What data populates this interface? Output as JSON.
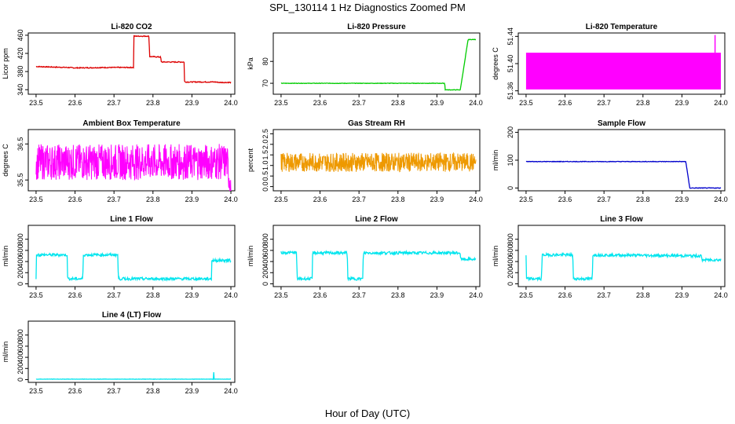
{
  "figure": {
    "title": "SPL_130114  1 Hz Diagnostics Zoomed PM",
    "xlabel": "Hour of Day (UTC)"
  },
  "chart_data": [
    {
      "type": "line",
      "title": "Li-820 CO2",
      "ylabel": "Licor ppm",
      "xlim": [
        23.48,
        24.01
      ],
      "ylim": [
        330,
        465
      ],
      "xticks": [
        "23.5",
        "23.6",
        "23.7",
        "23.8",
        "23.9",
        "24.0"
      ],
      "yticks": [
        "340",
        "380",
        "420",
        "460"
      ],
      "series": [
        {
          "color": "#dd0000",
          "noise": 1,
          "x": [
            23.5,
            23.58,
            23.6,
            23.7,
            23.75,
            23.751,
            23.79,
            23.791,
            23.82,
            23.821,
            23.88,
            23.881,
            23.96,
            23.97,
            23.99,
            24.0
          ],
          "y": [
            391,
            389,
            388,
            389,
            389,
            458,
            458,
            413,
            412,
            401,
            401,
            357,
            357,
            356,
            356,
            356
          ]
        }
      ]
    },
    {
      "type": "line",
      "title": "Li-820 Pressure",
      "ylabel": "kPa",
      "xlim": [
        23.48,
        24.01
      ],
      "ylim": [
        65,
        93
      ],
      "xticks": [
        "23.5",
        "23.6",
        "23.7",
        "23.8",
        "23.9",
        "24.0"
      ],
      "yticks": [
        "70",
        "80"
      ],
      "series": [
        {
          "color": "#00cc00",
          "noise": 0.1,
          "x": [
            23.5,
            23.92,
            23.921,
            23.96,
            23.98,
            24.0
          ],
          "y": [
            70,
            70,
            67,
            67,
            90,
            90
          ]
        }
      ]
    },
    {
      "type": "area",
      "title": "Li-820 Temperature",
      "ylabel": "degrees C",
      "xlim": [
        23.48,
        24.01
      ],
      "ylim": [
        51.355,
        51.445
      ],
      "xticks": [
        "23.5",
        "23.6",
        "23.7",
        "23.8",
        "23.9",
        "24.0"
      ],
      "yticks": [
        "51.36",
        "51.40",
        "51.44"
      ],
      "series": [
        {
          "color": "#ff00ff",
          "band": [
            51.362,
            51.416
          ],
          "spike": [
            23.985,
            51.442
          ],
          "x": [
            23.5,
            24.0
          ]
        }
      ]
    },
    {
      "type": "line",
      "title": "Ambient Box Temperature",
      "ylabel": "degrees C",
      "xlim": [
        23.48,
        24.01
      ],
      "ylim": [
        35.2,
        36.9
      ],
      "xticks": [
        "23.5",
        "23.6",
        "23.7",
        "23.8",
        "23.9",
        "24.0"
      ],
      "yticks": [
        "35.5",
        "36.5"
      ],
      "series": [
        {
          "color": "#ff00ff",
          "noise": 0.5,
          "dense": true,
          "x": [
            23.5,
            23.99,
            24.0
          ],
          "y": [
            36.0,
            36.0,
            35.3
          ]
        }
      ]
    },
    {
      "type": "line",
      "title": "Gas Stream RH",
      "ylabel": "percent",
      "xlim": [
        23.48,
        24.01
      ],
      "ylim": [
        -0.2,
        2.7
      ],
      "xticks": [
        "23.5",
        "23.6",
        "23.7",
        "23.8",
        "23.9",
        "24.0"
      ],
      "yticks": [
        "0.0",
        "0.5",
        "1.0",
        "1.5",
        "2.0",
        "2.5"
      ],
      "series": [
        {
          "color": "#ee9900",
          "noise": 0.45,
          "dense": true,
          "x": [
            23.5,
            24.0
          ],
          "y": [
            1.15,
            1.15
          ]
        }
      ]
    },
    {
      "type": "line",
      "title": "Sample Flow",
      "ylabel": "ml/min",
      "xlim": [
        23.48,
        24.01
      ],
      "ylim": [
        -10,
        210
      ],
      "xticks": [
        "23.5",
        "23.6",
        "23.7",
        "23.8",
        "23.9",
        "24.0"
      ],
      "yticks": [
        "0",
        "100",
        "200"
      ],
      "series": [
        {
          "color": "#0000cc",
          "noise": 1,
          "x": [
            23.5,
            23.91,
            23.92,
            24.0
          ],
          "y": [
            95,
            95,
            0,
            0
          ]
        }
      ]
    },
    {
      "type": "line",
      "title": "Line 1 Flow",
      "ylabel": "ml/min",
      "xlim": [
        23.48,
        24.01
      ],
      "ylim": [
        -50,
        1050
      ],
      "xticks": [
        "23.5",
        "23.6",
        "23.7",
        "23.8",
        "23.9",
        "24.0"
      ],
      "yticks": [
        "0",
        "200",
        "400",
        "600",
        "800"
      ],
      "series": [
        {
          "color": "#00e5ee",
          "noise": 25,
          "x": [
            23.5,
            23.5,
            23.58,
            23.581,
            23.62,
            23.621,
            23.71,
            23.711,
            23.95,
            23.951,
            24.0
          ],
          "y": [
            100,
            520,
            520,
            90,
            90,
            520,
            520,
            90,
            90,
            420,
            420
          ]
        }
      ]
    },
    {
      "type": "line",
      "title": "Line 2 Flow",
      "ylabel": "ml/min",
      "xlim": [
        23.48,
        24.01
      ],
      "ylim": [
        -50,
        1050
      ],
      "xticks": [
        "23.5",
        "23.6",
        "23.7",
        "23.8",
        "23.9",
        "24.0"
      ],
      "yticks": [
        "0",
        "200",
        "400",
        "600",
        "800"
      ],
      "series": [
        {
          "color": "#00e5ee",
          "noise": 25,
          "x": [
            23.5,
            23.54,
            23.541,
            23.58,
            23.581,
            23.67,
            23.671,
            23.71,
            23.711,
            23.96,
            23.961,
            24.0
          ],
          "y": [
            560,
            560,
            90,
            90,
            555,
            555,
            90,
            90,
            555,
            555,
            440,
            440
          ]
        }
      ]
    },
    {
      "type": "line",
      "title": "Line 3 Flow",
      "ylabel": "ml/min",
      "xlim": [
        23.48,
        24.01
      ],
      "ylim": [
        -50,
        1050
      ],
      "xticks": [
        "23.5",
        "23.6",
        "23.7",
        "23.8",
        "23.9",
        "24.0"
      ],
      "yticks": [
        "0",
        "200",
        "400",
        "600",
        "800"
      ],
      "series": [
        {
          "color": "#00e5ee",
          "noise": 25,
          "x": [
            23.5,
            23.5,
            23.54,
            23.541,
            23.62,
            23.621,
            23.67,
            23.671,
            23.95,
            23.951,
            24.0
          ],
          "y": [
            500,
            90,
            90,
            520,
            520,
            90,
            90,
            520,
            500,
            430,
            430
          ]
        }
      ]
    },
    {
      "type": "line",
      "title": "Line 4 (LT) Flow",
      "ylabel": "ml/min",
      "xlim": [
        23.48,
        24.01
      ],
      "ylim": [
        -50,
        1050
      ],
      "xticks": [
        "23.5",
        "23.6",
        "23.7",
        "23.8",
        "23.9",
        "24.0"
      ],
      "yticks": [
        "0",
        "200",
        "400",
        "600",
        "800"
      ],
      "series": [
        {
          "color": "#00e5ee",
          "noise": 3,
          "x": [
            23.5,
            23.955,
            23.956,
            23.957,
            24.0
          ],
          "y": [
            8,
            8,
            140,
            8,
            8
          ]
        }
      ]
    }
  ]
}
